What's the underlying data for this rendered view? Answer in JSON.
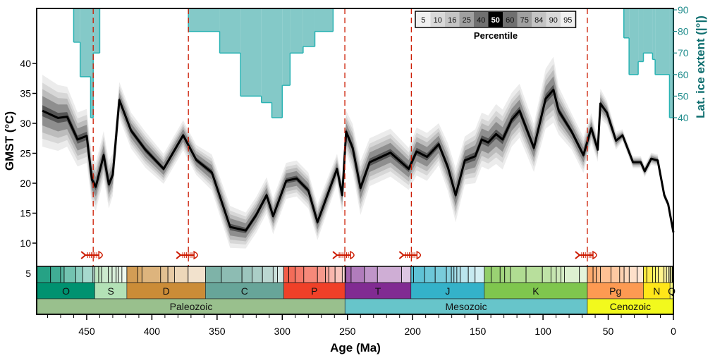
{
  "chart_data": {
    "type": "area",
    "xlabel": "Age (Ma)",
    "ylabel": "GMST (°C)",
    "y2label": "Lat. ice extent (|°|)",
    "xlim": [
      488,
      0
    ],
    "ylim": [
      5,
      49
    ],
    "y2lim": [
      40,
      90
    ],
    "x_ticks": [
      450,
      400,
      350,
      300,
      250,
      200,
      150,
      100,
      50,
      0
    ],
    "y_ticks": [
      5,
      10,
      15,
      20,
      25,
      30,
      35,
      40
    ],
    "y2_ticks": [
      40,
      50,
      60,
      70,
      80,
      90
    ],
    "legend": {
      "title": "Percentile",
      "placement": "top-center",
      "percentiles": [
        5,
        10,
        16,
        25,
        40,
        50,
        60,
        75,
        84,
        90,
        95
      ],
      "colors": [
        "#f0f0f0",
        "#d9d9d9",
        "#c4c4c4",
        "#a0a0a0",
        "#707070",
        "#000000",
        "#707070",
        "#a0a0a0",
        "#c4c4c4",
        "#d9d9d9",
        "#f0f0f0"
      ]
    },
    "gmst": {
      "age": [
        484,
        472,
        465,
        457,
        450,
        446,
        443,
        437,
        433,
        430,
        425,
        416,
        405,
        391,
        376,
        366,
        354,
        340,
        328,
        320,
        312,
        307,
        297,
        289,
        280,
        273,
        258,
        254,
        251,
        246,
        240,
        233,
        217,
        203,
        197,
        189,
        180,
        173,
        167,
        160,
        152,
        147,
        142,
        136,
        131,
        124,
        118,
        107,
        98,
        92,
        88,
        78,
        69,
        63,
        58,
        56,
        51,
        44,
        39,
        31,
        25,
        22,
        17,
        12,
        7,
        4,
        0
      ],
      "median": [
        32.1,
        30.9,
        31.1,
        27.3,
        27.9,
        20.6,
        19.4,
        24.7,
        19.8,
        21.4,
        33.9,
        28.8,
        25.6,
        22.4,
        28.0,
        23.9,
        21.8,
        12.7,
        12.1,
        14.7,
        18.0,
        14.5,
        20.4,
        20.8,
        18.8,
        13.5,
        22.4,
        18.0,
        28.6,
        25.9,
        19.2,
        23.5,
        25.1,
        22.4,
        25.3,
        24.4,
        26.5,
        22.7,
        18.0,
        23.8,
        24.5,
        27.3,
        26.8,
        28.2,
        27.3,
        30.6,
        32.1,
        25.9,
        34.1,
        35.6,
        32.1,
        28.6,
        24.7,
        29.2,
        25.6,
        33.3,
        31.8,
        27.1,
        28.0,
        23.5,
        23.5,
        22.0,
        24.1,
        23.8,
        18.0,
        16.5,
        11.8
      ],
      "spread_5_95": [
        6,
        5.5,
        5,
        4.5,
        4.5,
        4,
        4,
        4,
        4,
        3.5,
        3,
        3,
        3,
        2.5,
        2.5,
        2.5,
        3,
        3.5,
        3,
        3,
        3,
        3,
        3,
        3,
        3,
        3,
        2.5,
        3,
        3.5,
        4,
        4.5,
        4,
        4,
        3.5,
        4,
        4,
        3.5,
        4,
        4.5,
        4,
        4.5,
        4.5,
        4.5,
        5,
        5,
        4.5,
        4.5,
        4,
        5,
        5.5,
        4,
        3,
        3,
        2.5,
        2,
        2.5,
        2,
        1.5,
        1,
        1,
        1,
        1,
        1,
        1,
        0.8,
        0.6,
        0.5
      ]
    },
    "ice_extent": [
      {
        "from": 460,
        "to": 455,
        "lat": 75
      },
      {
        "from": 455,
        "to": 447,
        "lat": 59
      },
      {
        "from": 447,
        "to": 445,
        "lat": 40
      },
      {
        "from": 445,
        "to": 440,
        "lat": 70
      },
      {
        "from": 372,
        "to": 348,
        "lat": 80
      },
      {
        "from": 348,
        "to": 332,
        "lat": 70
      },
      {
        "from": 332,
        "to": 316,
        "lat": 50
      },
      {
        "from": 316,
        "to": 308,
        "lat": 47
      },
      {
        "from": 308,
        "to": 300,
        "lat": 40
      },
      {
        "from": 300,
        "to": 294,
        "lat": 55
      },
      {
        "from": 294,
        "to": 284,
        "lat": 70
      },
      {
        "from": 284,
        "to": 275,
        "lat": 73
      },
      {
        "from": 275,
        "to": 261,
        "lat": 80
      },
      {
        "from": 38,
        "to": 34,
        "lat": 77
      },
      {
        "from": 34,
        "to": 27,
        "lat": 60
      },
      {
        "from": 27,
        "to": 23,
        "lat": 66
      },
      {
        "from": 23,
        "to": 16,
        "lat": 70
      },
      {
        "from": 16,
        "to": 14,
        "lat": 67
      },
      {
        "from": 14,
        "to": 3,
        "lat": 60
      },
      {
        "from": 3,
        "to": 0,
        "lat": 40
      }
    ],
    "mass_extinctions": [
      445,
      372,
      252,
      201,
      66
    ],
    "periods": [
      {
        "label": "O",
        "from": 488,
        "to": 443.8,
        "color": "#009270"
      },
      {
        "label": "S",
        "from": 443.8,
        "to": 419.2,
        "color": "#b3e1b6"
      },
      {
        "label": "D",
        "from": 419.2,
        "to": 358.9,
        "color": "#cb8c37"
      },
      {
        "label": "C",
        "from": 358.9,
        "to": 298.9,
        "color": "#67a599"
      },
      {
        "label": "P",
        "from": 298.9,
        "to": 251.9,
        "color": "#f04028"
      },
      {
        "label": "T",
        "from": 251.9,
        "to": 201.3,
        "color": "#812b92"
      },
      {
        "label": "J",
        "from": 201.3,
        "to": 145,
        "color": "#34b2c9"
      },
      {
        "label": "K",
        "from": 145,
        "to": 66,
        "color": "#7fc64e"
      },
      {
        "label": "Pg",
        "from": 66,
        "to": 23,
        "color": "#fd9a52"
      },
      {
        "label": "N",
        "from": 23,
        "to": 2.6,
        "color": "#ffe619"
      },
      {
        "label": "Q",
        "from": 2.6,
        "to": 0,
        "color": "#f9f97f"
      }
    ],
    "eras": [
      {
        "label": "Paleozoic",
        "from": 488,
        "to": 251.9,
        "color": "#99c08d"
      },
      {
        "label": "Mesozoic",
        "from": 251.9,
        "to": 66,
        "color": "#67c5ca"
      },
      {
        "label": "Cenozoic",
        "from": 66,
        "to": 0,
        "color": "#f2f91d"
      }
    ],
    "stage_boundaries": [
      477.7,
      470,
      467.3,
      458.4,
      453,
      445.2,
      440.8,
      438.5,
      433.4,
      430.5,
      427.4,
      425.6,
      423,
      410.8,
      407.6,
      393.3,
      387.7,
      382.7,
      372.2,
      346.7,
      330.9,
      323.2,
      315.2,
      307,
      303.7,
      295,
      290.1,
      283.5,
      273,
      266.9,
      264.3,
      259.5,
      254,
      251.2,
      247.2,
      237,
      227,
      208.5,
      199.3,
      190.8,
      182.7,
      174.1,
      170.3,
      168.3,
      166.1,
      163.5,
      157.3,
      152.1,
      139.8,
      132.9,
      129.4,
      125,
      113,
      100.5,
      93.9,
      89.8,
      86.3,
      83.6,
      72.1,
      61.6,
      59.2,
      56,
      47.8,
      41.2,
      37.8,
      33.9,
      27.8,
      20.4,
      16,
      13.8,
      11.6,
      7.2,
      5.3,
      3.6,
      1.8,
      0.77
    ],
    "colors": {
      "ice_fill": "#84c9c8",
      "ice_stroke": "#2ab3b3",
      "extinction": "#cc1a00",
      "median": "#000000"
    }
  }
}
